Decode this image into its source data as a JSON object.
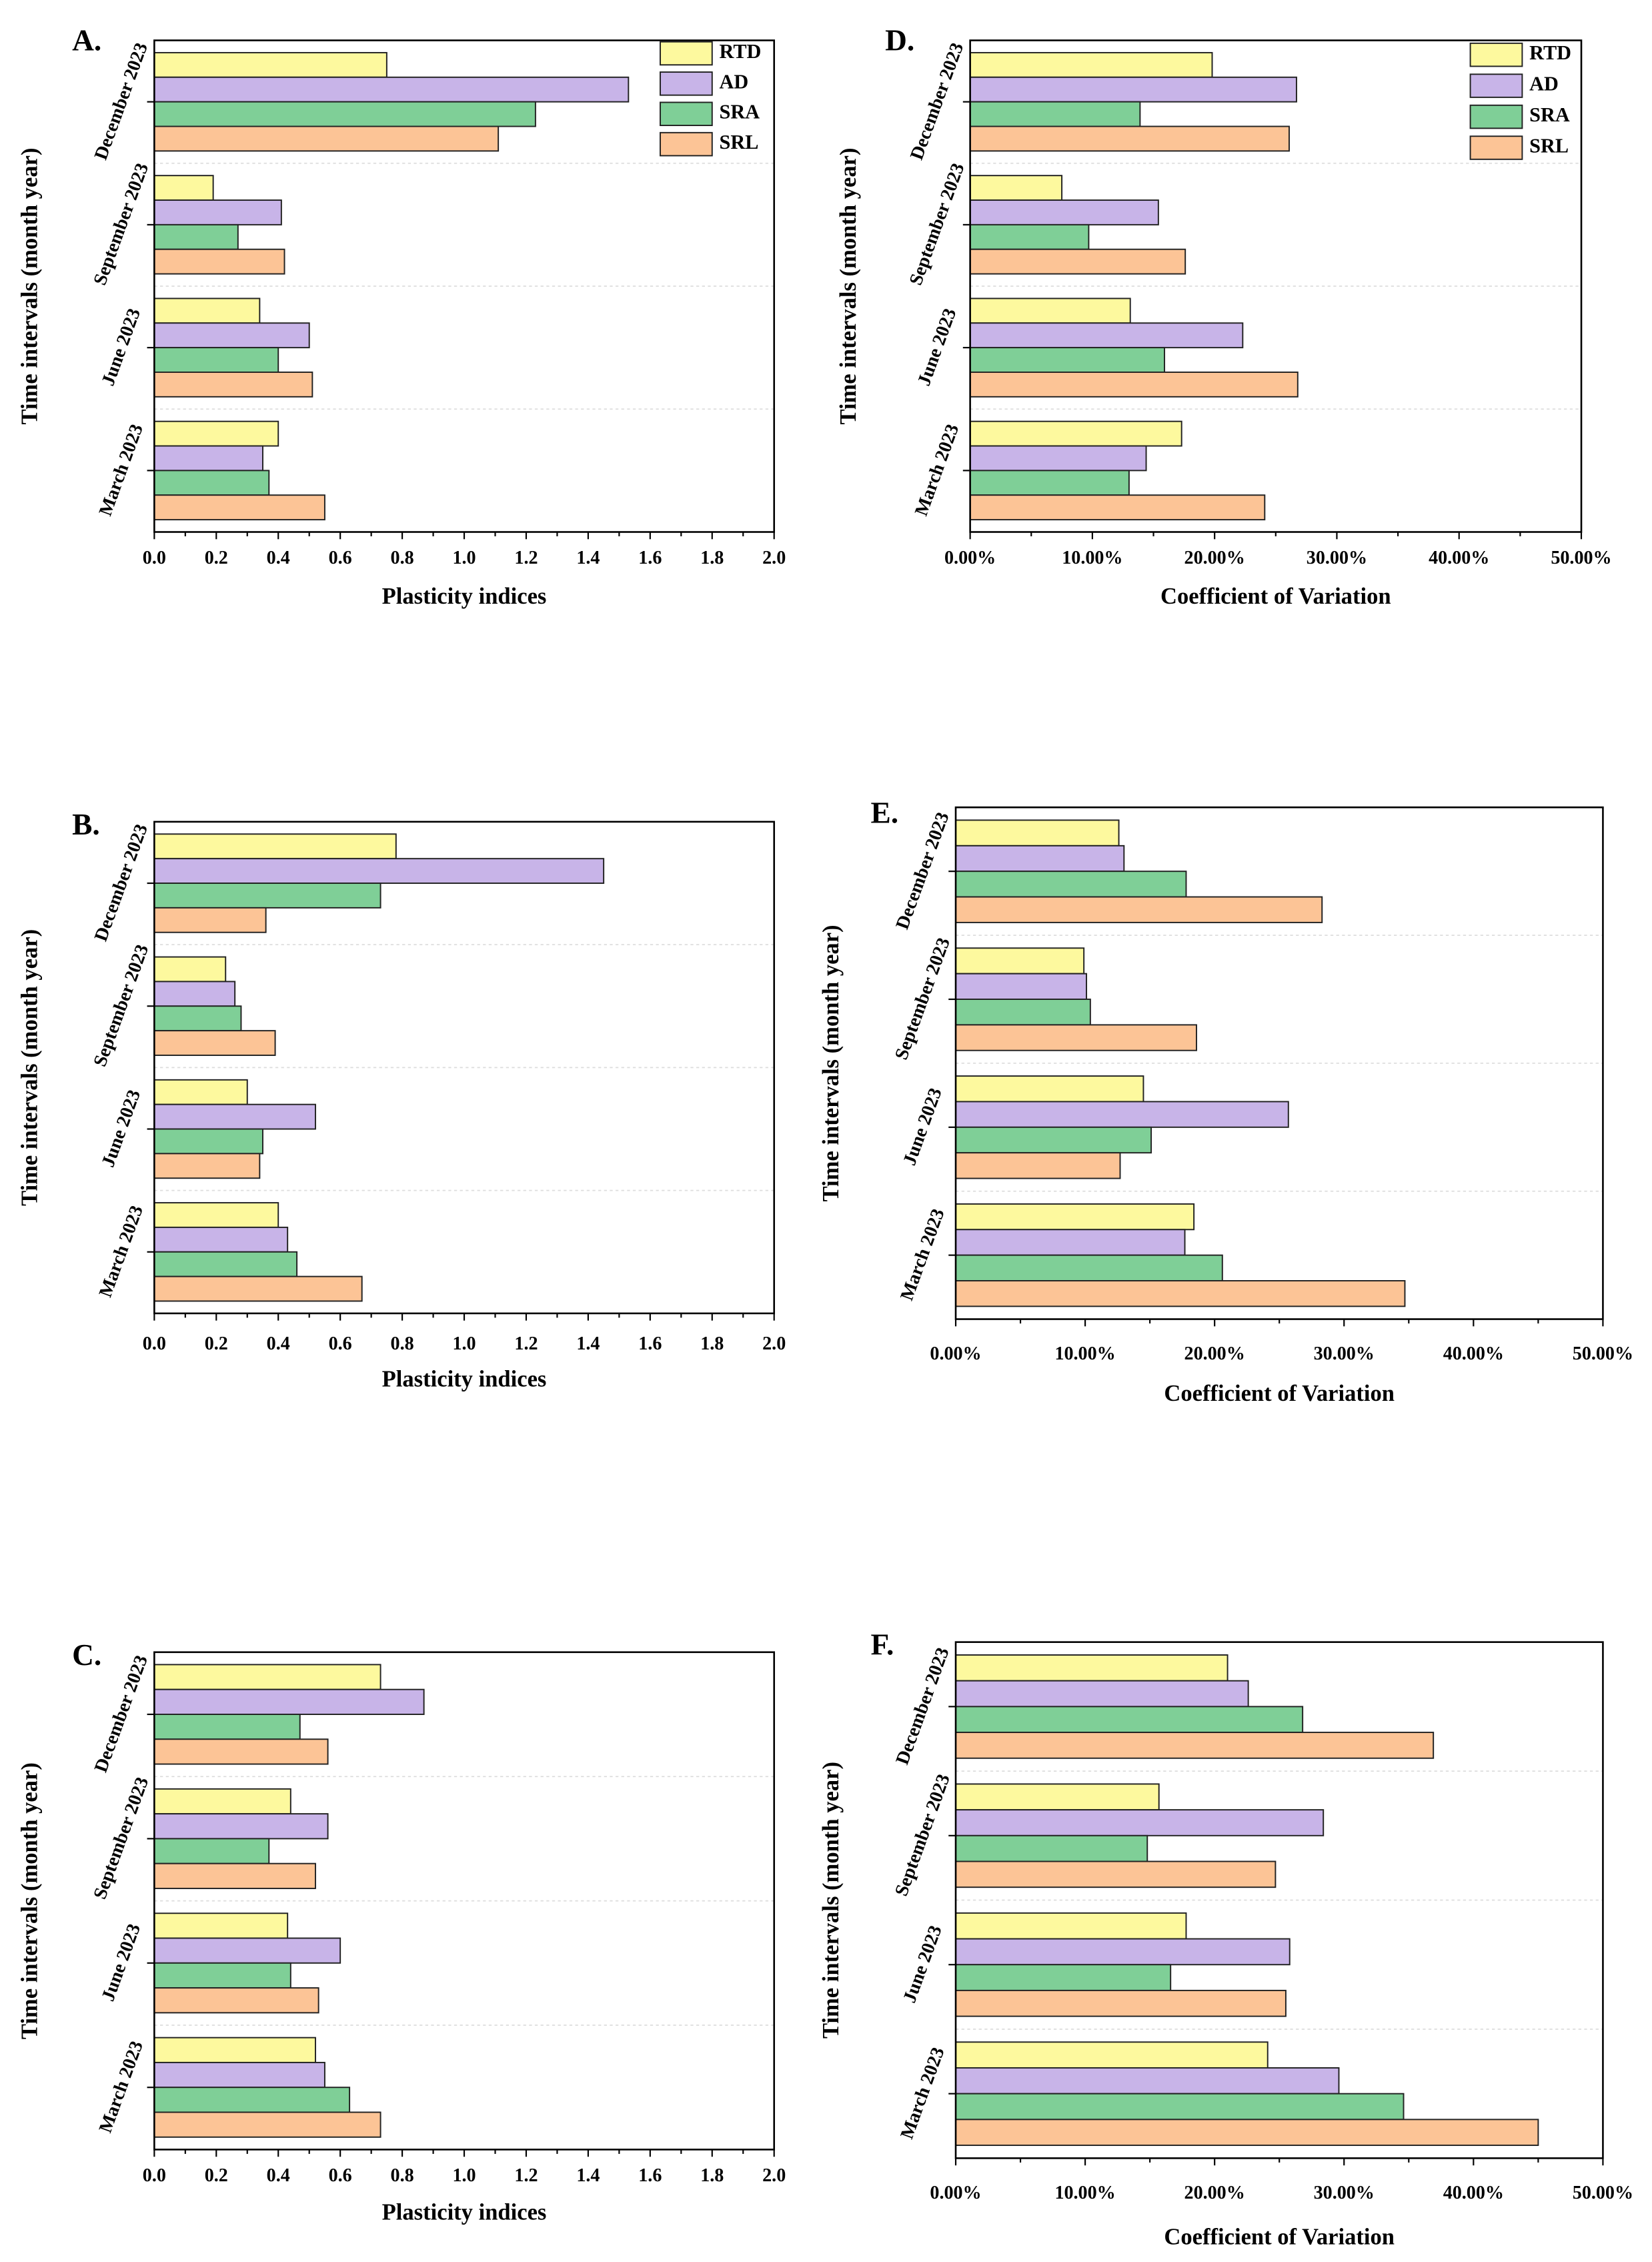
{
  "chart_data": [
    {
      "type": "bar",
      "label": "A.",
      "xlabel": "Plasticity indices",
      "ylabel": "Time intervals (month year)",
      "categories": [
        "March 2023",
        "June 2023",
        "September 2023",
        "December 2023"
      ],
      "series": [
        {
          "name": "RTD",
          "color": "#fdf99e",
          "values": [
            0.4,
            0.34,
            0.19,
            0.75
          ]
        },
        {
          "name": "AD",
          "color": "#c8b4e8",
          "values": [
            0.35,
            0.5,
            0.41,
            1.53
          ]
        },
        {
          "name": "SRA",
          "color": "#7fcf97",
          "values": [
            0.37,
            0.4,
            0.27,
            1.23
          ]
        },
        {
          "name": "SRL",
          "color": "#fcc496",
          "values": [
            0.55,
            0.51,
            0.42,
            1.11
          ]
        }
      ],
      "xlim": [
        0,
        2
      ],
      "xticks": [
        {
          "value": 0,
          "label": "0.0"
        },
        0.2,
        0.4,
        0.6,
        0.8,
        {
          "value": 1,
          "label": "1.0"
        },
        1.2,
        1.4,
        1.6,
        1.8,
        {
          "value": 2,
          "label": "2.0"
        }
      ],
      "legend": "upper right"
    },
    {
      "type": "bar",
      "label": "D.",
      "xlabel": "Coefficient of Variation",
      "ylabel": "Time intervals (month year)",
      "categories": [
        "March 2023",
        "June 2023",
        "September 2023",
        "December 2023"
      ],
      "series": [
        {
          "name": "RTD",
          "color": "#fdf99e",
          "values": [
            17.3,
            13.1,
            7.5,
            19.8
          ]
        },
        {
          "name": "AD",
          "color": "#c8b4e8",
          "values": [
            14.4,
            22.3,
            15.4,
            26.7
          ]
        },
        {
          "name": "SRA",
          "color": "#7fcf97",
          "values": [
            13.0,
            15.9,
            9.7,
            13.9
          ]
        },
        {
          "name": "SRL",
          "color": "#fcc496",
          "values": [
            24.1,
            26.8,
            17.6,
            26.1
          ]
        }
      ],
      "xlim": [
        0,
        50
      ],
      "xticks": [
        {
          "value": 0,
          "label": "0.00%"
        },
        {
          "value": 10,
          "label": "10.00%"
        },
        {
          "value": 20,
          "label": "20.00%"
        },
        {
          "value": 30,
          "label": "30.00%"
        },
        {
          "value": 40,
          "label": "40.00%"
        },
        {
          "value": 50,
          "label": "50.00%"
        }
      ],
      "legend": "upper right"
    },
    {
      "type": "bar",
      "label": "B.",
      "xlabel": "Plasticity indices",
      "ylabel": "Time intervals (month year)",
      "categories": [
        "March 2023",
        "June 2023",
        "September 2023",
        "December 2023"
      ],
      "series": [
        {
          "name": "RTD",
          "color": "#fdf99e",
          "values": [
            0.4,
            0.3,
            0.23,
            0.78
          ]
        },
        {
          "name": "AD",
          "color": "#c8b4e8",
          "values": [
            0.43,
            0.52,
            0.26,
            1.45
          ]
        },
        {
          "name": "SRA",
          "color": "#7fcf97",
          "values": [
            0.46,
            0.35,
            0.28,
            0.73
          ]
        },
        {
          "name": "SRL",
          "color": "#fcc496",
          "values": [
            0.67,
            0.34,
            0.39,
            0.36
          ]
        }
      ],
      "xlim": [
        0,
        2
      ],
      "xticks": [
        {
          "value": 0,
          "label": "0.0"
        },
        0.2,
        0.4,
        0.6,
        0.8,
        {
          "value": 1,
          "label": "1.0"
        },
        1.2,
        1.4,
        1.6,
        1.8,
        {
          "value": 2,
          "label": "2.0"
        }
      ]
    },
    {
      "type": "bar",
      "label": "E.",
      "xlabel": "Coefficient of Variation",
      "ylabel": "Time intervals (month year)",
      "categories": [
        "March 2023",
        "June 2023",
        "September 2023",
        "December 2023"
      ],
      "series": [
        {
          "name": "RTD",
          "color": "#fdf99e",
          "values": [
            18.4,
            14.5,
            9.9,
            12.6
          ]
        },
        {
          "name": "AD",
          "color": "#c8b4e8",
          "values": [
            17.7,
            25.7,
            10.1,
            13.0
          ]
        },
        {
          "name": "SRA",
          "color": "#7fcf97",
          "values": [
            20.6,
            15.1,
            10.4,
            17.8
          ]
        },
        {
          "name": "SRL",
          "color": "#fcc496",
          "values": [
            34.7,
            12.7,
            18.6,
            28.3
          ]
        }
      ],
      "xlim": [
        0,
        50
      ],
      "xticks": [
        {
          "value": 0,
          "label": "0.00%"
        },
        {
          "value": 10,
          "label": "10.00%"
        },
        {
          "value": 20,
          "label": "20.00%"
        },
        {
          "value": 30,
          "label": "30.00%"
        },
        {
          "value": 40,
          "label": "40.00%"
        },
        {
          "value": 50,
          "label": "50.00%"
        }
      ]
    },
    {
      "type": "bar",
      "label": "C.",
      "xlabel": "Plasticity indices",
      "ylabel": "Time intervals (month year)",
      "categories": [
        "March 2023",
        "June 2023",
        "September 2023",
        "December 2023"
      ],
      "series": [
        {
          "name": "RTD",
          "color": "#fdf99e",
          "values": [
            0.52,
            0.43,
            0.44,
            0.73
          ]
        },
        {
          "name": "AD",
          "color": "#c8b4e8",
          "values": [
            0.55,
            0.6,
            0.56,
            0.87
          ]
        },
        {
          "name": "SRA",
          "color": "#7fcf97",
          "values": [
            0.63,
            0.44,
            0.37,
            0.47
          ]
        },
        {
          "name": "SRL",
          "color": "#fcc496",
          "values": [
            0.73,
            0.53,
            0.52,
            0.56
          ]
        }
      ],
      "xlim": [
        0,
        2
      ],
      "xticks": [
        {
          "value": 0,
          "label": "0.0"
        },
        0.2,
        0.4,
        0.6,
        0.8,
        {
          "value": 1,
          "label": "1.0"
        },
        1.2,
        1.4,
        1.6,
        1.8,
        {
          "value": 2,
          "label": "2.0"
        }
      ]
    },
    {
      "type": "bar",
      "label": "F.",
      "xlabel": "Coefficient of Variation",
      "ylabel": "Time intervals (month year)",
      "categories": [
        "March 2023",
        "June 2023",
        "September 2023",
        "December 2023"
      ],
      "series": [
        {
          "name": "RTD",
          "color": "#fdf99e",
          "values": [
            24.1,
            17.8,
            15.7,
            21.0
          ]
        },
        {
          "name": "AD",
          "color": "#c8b4e8",
          "values": [
            29.6,
            25.8,
            28.4,
            22.6
          ]
        },
        {
          "name": "SRA",
          "color": "#7fcf97",
          "values": [
            34.6,
            16.6,
            14.8,
            26.8
          ]
        },
        {
          "name": "SRL",
          "color": "#fcc496",
          "values": [
            45.0,
            25.5,
            24.7,
            36.9
          ]
        }
      ],
      "xlim": [
        0,
        50
      ],
      "xticks": [
        {
          "value": 0,
          "label": "0.00%"
        },
        {
          "value": 10,
          "label": "10.00%"
        },
        {
          "value": 20,
          "label": "20.00%"
        },
        {
          "value": 30,
          "label": "30.00%"
        },
        {
          "value": 40,
          "label": "40.00%"
        },
        {
          "value": 50,
          "label": "50.00%"
        }
      ]
    }
  ]
}
